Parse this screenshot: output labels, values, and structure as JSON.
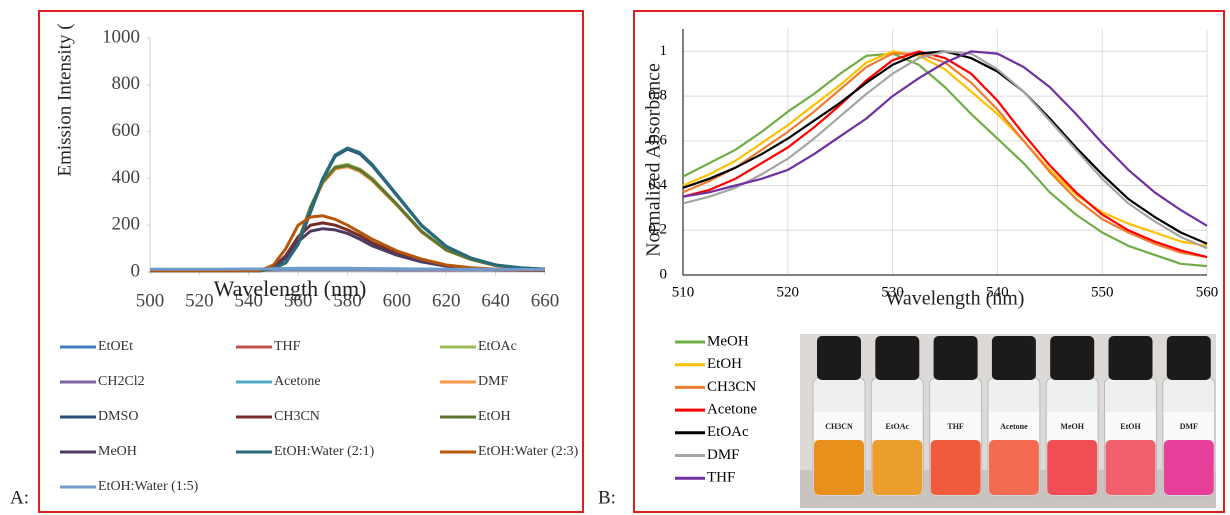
{
  "panel_labels": [
    "A:",
    "B:"
  ],
  "photo": {
    "vial_labels": [
      "CH3CN",
      "EtOAc",
      "THF",
      "Acetone",
      "MeOH",
      "EtOH",
      "DMF"
    ]
  },
  "chart_data": [
    {
      "type": "line",
      "y_label": "Emission Intensity (",
      "x_label": "Wavelength (nm)",
      "xlim": [
        500,
        660
      ],
      "xticks": [
        500,
        520,
        540,
        560,
        580,
        600,
        620,
        640,
        660
      ],
      "ylim": [
        0,
        1000
      ],
      "yticks": [
        0,
        200,
        400,
        600,
        800,
        1000
      ],
      "grid": false,
      "x": [
        500,
        510,
        520,
        530,
        540,
        545,
        550,
        555,
        560,
        565,
        570,
        575,
        580,
        585,
        590,
        600,
        610,
        620,
        630,
        640,
        650,
        660
      ],
      "series": [
        {
          "name": "EtOEt",
          "color": "#3f7dbf",
          "values": [
            10,
            10,
            10,
            10,
            10,
            10,
            10,
            11,
            11,
            11,
            11,
            11,
            11,
            11,
            10,
            10,
            10,
            10,
            9,
            9,
            9,
            9
          ]
        },
        {
          "name": "THF",
          "color": "#c0504d",
          "values": [
            8,
            8,
            8,
            8,
            8,
            8,
            8,
            9,
            9,
            9,
            9,
            9,
            9,
            9,
            9,
            8,
            8,
            8,
            8,
            8,
            8,
            8
          ]
        },
        {
          "name": "EtOAc",
          "color": "#9bbb59",
          "values": [
            5,
            5,
            5,
            5,
            5,
            6,
            15,
            40,
            130,
            280,
            390,
            450,
            460,
            440,
            400,
            290,
            175,
            95,
            55,
            28,
            16,
            11
          ]
        },
        {
          "name": "CH2Cl2",
          "color": "#8064a2",
          "values": [
            9,
            9,
            9,
            9,
            9,
            9,
            9,
            10,
            10,
            10,
            10,
            10,
            10,
            10,
            10,
            9,
            9,
            9,
            9,
            9,
            9,
            9
          ]
        },
        {
          "name": "Acetone",
          "color": "#4bacc6",
          "values": [
            11,
            11,
            11,
            11,
            11,
            11,
            11,
            12,
            12,
            12,
            12,
            12,
            12,
            12,
            12,
            11,
            11,
            11,
            10,
            10,
            10,
            10
          ]
        },
        {
          "name": "DMF",
          "color": "#f79646",
          "values": [
            5,
            5,
            5,
            5,
            5,
            6,
            14,
            38,
            125,
            270,
            380,
            440,
            450,
            430,
            390,
            285,
            170,
            93,
            53,
            27,
            16,
            11
          ]
        },
        {
          "name": "DMSO",
          "color": "#2c4d75",
          "values": [
            5,
            5,
            5,
            5,
            5,
            6,
            15,
            40,
            118,
            255,
            395,
            495,
            525,
            505,
            455,
            327,
            198,
            109,
            59,
            30,
            18,
            12
          ]
        },
        {
          "name": "CH3CN",
          "color": "#772c2a",
          "values": [
            5,
            5,
            5,
            5,
            5,
            6,
            20,
            70,
            150,
            200,
            210,
            200,
            180,
            155,
            125,
            80,
            48,
            28,
            16,
            11,
            8,
            7
          ]
        },
        {
          "name": "EtOH",
          "color": "#5f7530",
          "values": [
            5,
            5,
            5,
            5,
            5,
            6,
            15,
            40,
            128,
            276,
            386,
            446,
            455,
            436,
            396,
            288,
            173,
            94,
            54,
            28,
            16,
            11
          ]
        },
        {
          "name": "MeOH",
          "color": "#4d3b62",
          "values": [
            5,
            5,
            5,
            5,
            5,
            6,
            18,
            60,
            130,
            175,
            185,
            180,
            165,
            140,
            112,
            72,
            43,
            25,
            15,
            10,
            8,
            7
          ]
        },
        {
          "name": "EtOH:Water (2:1)",
          "color": "#276a7c",
          "values": [
            5,
            5,
            5,
            5,
            5,
            6,
            15,
            40,
            120,
            260,
            400,
            500,
            530,
            510,
            460,
            330,
            200,
            110,
            60,
            30,
            18,
            12
          ]
        },
        {
          "name": "EtOH:Water (2:3)",
          "color": "#b65708",
          "values": [
            5,
            5,
            5,
            5,
            5,
            8,
            30,
            100,
            200,
            235,
            240,
            225,
            200,
            170,
            140,
            90,
            55,
            30,
            18,
            12,
            9,
            8
          ]
        },
        {
          "name": "EtOH:Water (1:5)",
          "color": "#729aca",
          "values": [
            12,
            12,
            12,
            12,
            13,
            13,
            14,
            15,
            16,
            16,
            16,
            16,
            16,
            15,
            15,
            14,
            13,
            12,
            12,
            11,
            11,
            10
          ]
        }
      ]
    },
    {
      "type": "line",
      "y_label": "Normalized Absorbance",
      "x_label": "Wavelength (nm)",
      "xlim": [
        510,
        560
      ],
      "xticks": [
        510,
        520,
        530,
        540,
        550,
        560
      ],
      "ylim": [
        0,
        1.1
      ],
      "yticks": [
        0,
        0.2,
        0.4,
        0.6,
        0.8,
        1
      ],
      "grid": true,
      "x": [
        510,
        512.5,
        515,
        517.5,
        520,
        522.5,
        525,
        527.5,
        530,
        532.5,
        535,
        537.5,
        540,
        542.5,
        545,
        547.5,
        550,
        552.5,
        555,
        557.5,
        560
      ],
      "series": [
        {
          "name": "MeOH",
          "color": "#70ad47",
          "values": [
            0.44,
            0.5,
            0.56,
            0.64,
            0.73,
            0.81,
            0.9,
            0.98,
            0.99,
            0.94,
            0.84,
            0.72,
            0.61,
            0.5,
            0.37,
            0.27,
            0.19,
            0.13,
            0.09,
            0.05,
            0.04
          ]
        },
        {
          "name": "EtOH",
          "color": "#ffc000",
          "values": [
            0.4,
            0.45,
            0.51,
            0.59,
            0.67,
            0.76,
            0.85,
            0.95,
            1,
            0.98,
            0.92,
            0.82,
            0.72,
            0.6,
            0.47,
            0.36,
            0.28,
            0.23,
            0.19,
            0.15,
            0.13
          ]
        },
        {
          "name": "CH3CN",
          "color": "#ed7d31",
          "values": [
            0.37,
            0.42,
            0.48,
            0.56,
            0.64,
            0.73,
            0.83,
            0.93,
            0.99,
            0.99,
            0.95,
            0.86,
            0.74,
            0.6,
            0.46,
            0.34,
            0.25,
            0.19,
            0.14,
            0.1,
            0.08
          ]
        },
        {
          "name": "Acetone",
          "color": "#ff0000",
          "values": [
            0.35,
            0.38,
            0.43,
            0.5,
            0.57,
            0.66,
            0.76,
            0.87,
            0.96,
            1,
            0.97,
            0.9,
            0.78,
            0.63,
            0.49,
            0.37,
            0.27,
            0.2,
            0.15,
            0.11,
            0.08
          ]
        },
        {
          "name": "EtOAc",
          "color": "#000000",
          "values": [
            0.39,
            0.43,
            0.48,
            0.54,
            0.61,
            0.69,
            0.77,
            0.86,
            0.94,
            0.99,
            1,
            0.97,
            0.91,
            0.82,
            0.7,
            0.57,
            0.45,
            0.34,
            0.26,
            0.19,
            0.14
          ]
        },
        {
          "name": "DMF",
          "color": "#a5a5a5",
          "values": [
            0.32,
            0.35,
            0.39,
            0.45,
            0.52,
            0.61,
            0.71,
            0.81,
            0.9,
            0.97,
            1,
            0.99,
            0.92,
            0.82,
            0.69,
            0.56,
            0.43,
            0.32,
            0.24,
            0.17,
            0.12
          ]
        },
        {
          "name": "THF",
          "color": "#7030a0",
          "values": [
            0.35,
            0.37,
            0.4,
            0.43,
            0.47,
            0.54,
            0.62,
            0.7,
            0.8,
            0.88,
            0.95,
            1,
            0.99,
            0.93,
            0.84,
            0.72,
            0.59,
            0.47,
            0.37,
            0.29,
            0.22
          ]
        }
      ]
    }
  ]
}
